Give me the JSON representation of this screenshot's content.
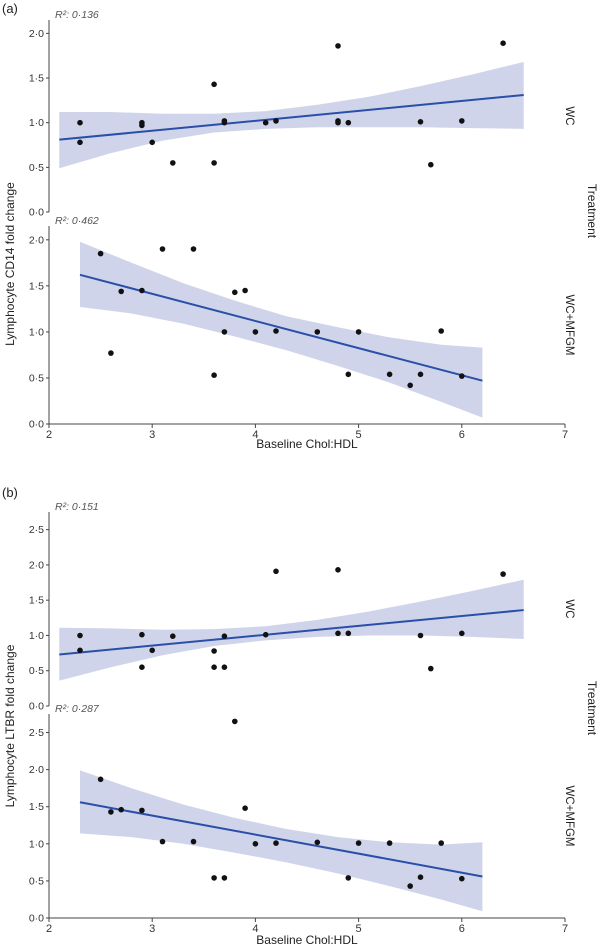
{
  "figure": {
    "treatment_label": "Treatment",
    "panels": [
      {
        "letter": "(a)",
        "ylabel": "Lymphocyte CD14 fold change",
        "xlabel": "Baseline Chol:HDL"
      },
      {
        "letter": "(b)",
        "ylabel": "Lymphocyte LTBR fold change",
        "xlabel": "Baseline Chol:HDL"
      }
    ]
  },
  "colors": {
    "line": "#2a4fa8",
    "band": "#c7cde6",
    "point": "#111111",
    "axis": "#444444"
  },
  "chart_data": [
    {
      "type": "scatter",
      "panel": "(a)",
      "facet": "WC",
      "title": "",
      "xlabel": "Baseline Chol:HDL",
      "ylabel": "Lymphocyte CD14 fold change",
      "r2_label": "R²: 0·136",
      "xlim": [
        2,
        7
      ],
      "ylim": [
        0,
        2.15
      ],
      "xticks": [
        2,
        3,
        4,
        5,
        6,
        7
      ],
      "xtick_labels": [
        "2",
        "3",
        "4",
        "5",
        "6",
        "7"
      ],
      "yticks": [
        0,
        0.5,
        1.0,
        1.5,
        2.0
      ],
      "ytick_labels": [
        "0·0",
        "0·5",
        "1·0",
        "1·5",
        "2·0"
      ],
      "points": [
        [
          2.3,
          1.0
        ],
        [
          2.3,
          0.78
        ],
        [
          2.9,
          1.0
        ],
        [
          2.9,
          0.97
        ],
        [
          3.0,
          0.78
        ],
        [
          3.2,
          0.55
        ],
        [
          3.6,
          1.43
        ],
        [
          3.6,
          0.55
        ],
        [
          3.7,
          1.02
        ],
        [
          3.7,
          1.0
        ],
        [
          4.1,
          1.0
        ],
        [
          4.2,
          1.02
        ],
        [
          4.8,
          1.86
        ],
        [
          4.8,
          1.02
        ],
        [
          4.8,
          1.0
        ],
        [
          4.9,
          1.0
        ],
        [
          5.6,
          1.01
        ],
        [
          5.7,
          0.53
        ],
        [
          6.0,
          1.02
        ],
        [
          6.4,
          1.89
        ]
      ],
      "fit": {
        "x": [
          2.1,
          6.6
        ],
        "y": [
          0.81,
          1.31
        ]
      },
      "band": {
        "x": [
          2.1,
          2.6,
          3.1,
          3.6,
          4.1,
          4.6,
          5.1,
          5.6,
          6.1,
          6.6
        ],
        "lower": [
          0.49,
          0.66,
          0.8,
          0.89,
          0.93,
          0.95,
          0.95,
          0.95,
          0.94,
          0.93
        ],
        "upper": [
          1.12,
          1.12,
          1.1,
          1.1,
          1.13,
          1.2,
          1.29,
          1.41,
          1.54,
          1.68
        ]
      }
    },
    {
      "type": "scatter",
      "panel": "(a)",
      "facet": "WC+MFGM",
      "title": "",
      "xlabel": "Baseline Chol:HDL",
      "ylabel": "Lymphocyte CD14 fold change",
      "r2_label": "R²: 0·462",
      "xlim": [
        2,
        7
      ],
      "ylim": [
        0,
        2.15
      ],
      "xticks": [
        2,
        3,
        4,
        5,
        6,
        7
      ],
      "xtick_labels": [
        "2",
        "3",
        "4",
        "5",
        "6",
        "7"
      ],
      "yticks": [
        0,
        0.5,
        1.0,
        1.5,
        2.0
      ],
      "ytick_labels": [
        "0·0",
        "0·5",
        "1·0",
        "1·5",
        "2·0"
      ],
      "points": [
        [
          2.5,
          1.85
        ],
        [
          2.6,
          0.77
        ],
        [
          2.7,
          1.44
        ],
        [
          2.9,
          1.45
        ],
        [
          3.1,
          1.9
        ],
        [
          3.4,
          1.9
        ],
        [
          3.6,
          0.53
        ],
        [
          3.7,
          1.0
        ],
        [
          3.8,
          1.43
        ],
        [
          3.9,
          1.45
        ],
        [
          4.0,
          1.0
        ],
        [
          4.2,
          1.01
        ],
        [
          4.6,
          1.0
        ],
        [
          4.9,
          0.54
        ],
        [
          5.0,
          1.0
        ],
        [
          5.3,
          0.54
        ],
        [
          5.5,
          0.42
        ],
        [
          5.6,
          0.54
        ],
        [
          5.8,
          1.01
        ],
        [
          6.0,
          0.52
        ]
      ],
      "fit": {
        "x": [
          2.3,
          6.2
        ],
        "y": [
          1.62,
          0.47
        ]
      },
      "band": {
        "x": [
          2.3,
          2.8,
          3.3,
          3.8,
          4.3,
          4.8,
          5.3,
          5.8,
          6.2
        ],
        "lower": [
          1.27,
          1.2,
          1.09,
          0.95,
          0.8,
          0.63,
          0.45,
          0.24,
          0.07
        ],
        "upper": [
          1.98,
          1.75,
          1.53,
          1.34,
          1.17,
          1.05,
          0.94,
          0.86,
          0.83
        ]
      }
    },
    {
      "type": "scatter",
      "panel": "(b)",
      "facet": "WC",
      "title": "",
      "xlabel": "Baseline Chol:HDL",
      "ylabel": "Lymphocyte LTBR fold change",
      "r2_label": "R²: 0·151",
      "xlim": [
        2,
        7
      ],
      "ylim": [
        0,
        2.75
      ],
      "xticks": [
        2,
        3,
        4,
        5,
        6,
        7
      ],
      "xtick_labels": [
        "2",
        "3",
        "4",
        "5",
        "6",
        "7"
      ],
      "yticks": [
        0,
        0.5,
        1.0,
        1.5,
        2.0,
        2.5
      ],
      "ytick_labels": [
        "0·0",
        "0·5",
        "1·0",
        "1·5",
        "2·0",
        "2·5"
      ],
      "points": [
        [
          2.3,
          1.0
        ],
        [
          2.3,
          0.79
        ],
        [
          2.9,
          1.01
        ],
        [
          2.9,
          0.55
        ],
        [
          3.0,
          0.79
        ],
        [
          3.2,
          0.99
        ],
        [
          3.6,
          0.78
        ],
        [
          3.6,
          0.55
        ],
        [
          3.7,
          0.99
        ],
        [
          3.7,
          0.55
        ],
        [
          4.1,
          1.01
        ],
        [
          4.2,
          1.91
        ],
        [
          4.8,
          1.93
        ],
        [
          4.8,
          1.03
        ],
        [
          4.9,
          1.03
        ],
        [
          5.6,
          1.0
        ],
        [
          5.7,
          0.53
        ],
        [
          6.0,
          1.03
        ],
        [
          6.4,
          1.87
        ]
      ],
      "fit": {
        "x": [
          2.1,
          6.6
        ],
        "y": [
          0.73,
          1.36
        ]
      },
      "band": {
        "x": [
          2.1,
          2.6,
          3.1,
          3.6,
          4.1,
          4.6,
          5.1,
          5.6,
          6.1,
          6.6
        ],
        "lower": [
          0.36,
          0.55,
          0.72,
          0.85,
          0.93,
          0.98,
          1.0,
          1.0,
          0.98,
          0.95
        ],
        "upper": [
          1.11,
          1.1,
          1.08,
          1.09,
          1.13,
          1.22,
          1.34,
          1.48,
          1.63,
          1.79
        ]
      }
    },
    {
      "type": "scatter",
      "panel": "(b)",
      "facet": "WC+MFGM",
      "title": "",
      "xlabel": "Baseline Chol:HDL",
      "ylabel": "Lymphocyte LTBR fold change",
      "r2_label": "R²: 0·287",
      "xlim": [
        2,
        7
      ],
      "ylim": [
        0,
        2.75
      ],
      "xticks": [
        2,
        3,
        4,
        5,
        6,
        7
      ],
      "xtick_labels": [
        "2",
        "3",
        "4",
        "5",
        "6",
        "7"
      ],
      "yticks": [
        0,
        0.5,
        1.0,
        1.5,
        2.0,
        2.5
      ],
      "ytick_labels": [
        "0·0",
        "0·5",
        "1·0",
        "1·5",
        "2·0",
        "2·5"
      ],
      "points": [
        [
          2.5,
          1.87
        ],
        [
          2.6,
          1.43
        ],
        [
          2.7,
          1.46
        ],
        [
          2.9,
          1.45
        ],
        [
          3.1,
          1.03
        ],
        [
          3.4,
          1.03
        ],
        [
          3.6,
          0.54
        ],
        [
          3.7,
          0.54
        ],
        [
          3.8,
          2.65
        ],
        [
          3.9,
          1.48
        ],
        [
          4.0,
          1.0
        ],
        [
          4.2,
          1.01
        ],
        [
          4.6,
          1.02
        ],
        [
          4.9,
          0.54
        ],
        [
          5.0,
          1.01
        ],
        [
          5.3,
          1.01
        ],
        [
          5.5,
          0.43
        ],
        [
          5.6,
          0.55
        ],
        [
          5.8,
          1.01
        ],
        [
          6.0,
          0.53
        ]
      ],
      "fit": {
        "x": [
          2.3,
          6.2
        ],
        "y": [
          1.56,
          0.56
        ]
      },
      "band": {
        "x": [
          2.3,
          2.8,
          3.3,
          3.8,
          4.3,
          4.8,
          5.3,
          5.8,
          6.2
        ],
        "lower": [
          1.14,
          1.09,
          1.0,
          0.88,
          0.75,
          0.6,
          0.43,
          0.25,
          0.09
        ],
        "upper": [
          1.99,
          1.75,
          1.53,
          1.35,
          1.2,
          1.09,
          1.02,
          0.99,
          1.02
        ]
      }
    }
  ]
}
